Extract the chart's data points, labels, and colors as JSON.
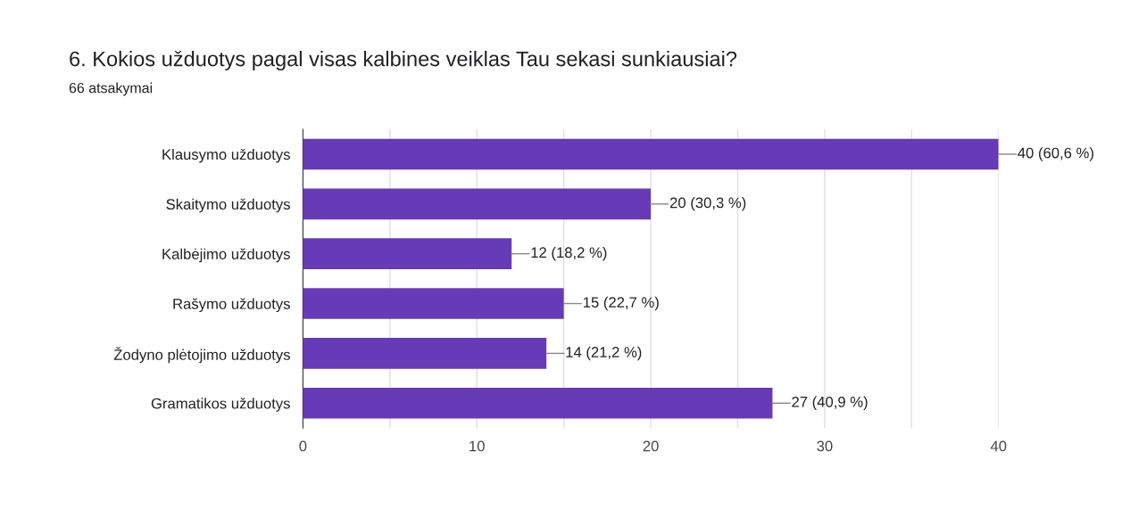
{
  "chart_data": {
    "type": "bar",
    "orientation": "horizontal",
    "title": "6. Kokios užduotys pagal visas kalbines veiklas Tau sekasi sunkiausiai?",
    "subtitle": "66 atsakymai",
    "categories": [
      "Klausymo užduotys",
      "Skaitymo užduotys",
      "Kalbėjimo užduotys",
      "Rašymo užduotys",
      "Žodyno plėtojimo užduotys",
      "Gramatikos užduotys"
    ],
    "values": [
      40,
      20,
      12,
      15,
      14,
      27
    ],
    "value_labels": [
      "40 (60,6 %)",
      "20 (30,3 %)",
      "12 (18,2 %)",
      "15 (22,7 %)",
      "14 (21,2 %)",
      "27 (40,9 %)"
    ],
    "color": "#673ab7",
    "xlim": [
      0,
      40
    ],
    "xticks": [
      0,
      {
        "value": 5,
        "label": null
      },
      10,
      {
        "value": 15,
        "label": null
      },
      20,
      {
        "value": 25,
        "label": null
      },
      30,
      {
        "value": 35,
        "label": null
      },
      40
    ],
    "grid": "x",
    "legend": false
  }
}
